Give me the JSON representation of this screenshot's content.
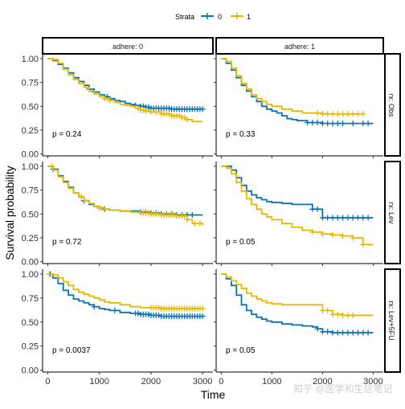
{
  "chart_data": {
    "type": "line",
    "subtype": "kaplan-meier survival curves (faceted)",
    "legend": {
      "title": "Strata",
      "position": "top",
      "entries": [
        {
          "label": "0",
          "color": "#0a72b5"
        },
        {
          "label": "1",
          "color": "#e7b800"
        }
      ]
    },
    "xlabel": "Time",
    "ylabel": "Survival probability",
    "xlim": [
      -100,
      3200
    ],
    "ylim": [
      -0.02,
      1.05
    ],
    "xticks": [
      "0",
      "1000",
      "2000",
      "3000"
    ],
    "yticks": [
      "0.00",
      "0.25",
      "0.50",
      "0.75",
      "1.00"
    ],
    "grid": false,
    "column_strips": [
      "adhere: 0",
      "adhere: 1"
    ],
    "row_strips": [
      "rx: Obs",
      "rx: Lev",
      "rx: Lev+5FU"
    ],
    "watermark": "知乎 @医学和生信笔记",
    "panels": [
      {
        "row": 0,
        "col": 0,
        "p_value": "p = 0.24",
        "series": [
          {
            "name": "0",
            "color": "#0a72b5",
            "x": [
              0,
              100,
              200,
              300,
              400,
              500,
              600,
              700,
              800,
              900,
              1000,
              1100,
              1200,
              1300,
              1400,
              1500,
              1600,
              1700,
              1800,
              1900,
              2000,
              2200,
              2400,
              2600,
              2800,
              3000
            ],
            "y": [
              1.0,
              0.98,
              0.94,
              0.9,
              0.85,
              0.8,
              0.76,
              0.72,
              0.68,
              0.65,
              0.62,
              0.6,
              0.58,
              0.56,
              0.55,
              0.53,
              0.52,
              0.51,
              0.5,
              0.49,
              0.48,
              0.48,
              0.47,
              0.47,
              0.47,
              0.47
            ],
            "censor_x": [
              800,
              900,
              1150,
              1700,
              1800,
              1850,
              1900,
              1950,
              2000,
              2050,
              2100,
              2150,
              2200,
              2250,
              2300,
              2350,
              2400,
              2450,
              2500,
              2550,
              2600,
              2650,
              2700,
              2750,
              2800,
              2850,
              2900,
              2950,
              3000
            ]
          },
          {
            "name": "1",
            "color": "#e7b800",
            "x": [
              0,
              100,
              200,
              300,
              400,
              500,
              600,
              700,
              800,
              900,
              1000,
              1100,
              1200,
              1300,
              1400,
              1500,
              1600,
              1700,
              1800,
              1900,
              2000,
              2200,
              2400,
              2600,
              2700,
              2800,
              3000
            ],
            "y": [
              1.0,
              0.99,
              0.95,
              0.89,
              0.83,
              0.78,
              0.74,
              0.7,
              0.66,
              0.63,
              0.6,
              0.58,
              0.56,
              0.54,
              0.52,
              0.51,
              0.5,
              0.48,
              0.46,
              0.45,
              0.44,
              0.42,
              0.4,
              0.38,
              0.36,
              0.34,
              0.34
            ],
            "censor_x": [
              1100,
              1200,
              1750,
              1800,
              1850,
              1900,
              2000,
              2100,
              2200,
              2250,
              2300,
              2350,
              2400,
              2450,
              2500,
              2550,
              2600,
              2650,
              2700
            ]
          }
        ]
      },
      {
        "row": 0,
        "col": 1,
        "p_value": "p = 0.33",
        "series": [
          {
            "name": "0",
            "color": "#0a72b5",
            "x": [
              0,
              100,
              200,
              300,
              400,
              500,
              600,
              700,
              800,
              900,
              1000,
              1100,
              1200,
              1300,
              1400,
              1500,
              1700,
              2000,
              2300,
              2600,
              3000
            ],
            "y": [
              1.0,
              0.95,
              0.88,
              0.8,
              0.72,
              0.66,
              0.6,
              0.55,
              0.5,
              0.47,
              0.45,
              0.43,
              0.4,
              0.37,
              0.36,
              0.35,
              0.33,
              0.32,
              0.32,
              0.32,
              0.32
            ],
            "censor_x": [
              1700,
              1800,
              1900,
              2000,
              2100,
              2200,
              2300,
              2400,
              2600,
              2800,
              2900
            ]
          },
          {
            "name": "1",
            "color": "#e7b800",
            "x": [
              0,
              100,
              200,
              300,
              400,
              500,
              600,
              700,
              800,
              900,
              1000,
              1200,
              1400,
              1600,
              1800,
              2000,
              2400,
              2800
            ],
            "y": [
              1.0,
              0.97,
              0.9,
              0.82,
              0.74,
              0.68,
              0.62,
              0.58,
              0.55,
              0.52,
              0.5,
              0.47,
              0.45,
              0.43,
              0.43,
              0.42,
              0.42,
              0.42
            ],
            "censor_x": [
              1900,
              2000,
              2100,
              2200,
              2300,
              2400,
              2500,
              2600,
              2700,
              2800
            ]
          }
        ]
      },
      {
        "row": 1,
        "col": 0,
        "p_value": "p = 0.72",
        "series": [
          {
            "name": "0",
            "color": "#0a72b5",
            "x": [
              0,
              100,
              200,
              300,
              400,
              500,
              600,
              700,
              800,
              900,
              1000,
              1100,
              1200,
              1300,
              1400,
              1500,
              1600,
              1800,
              2000,
              2200,
              2500,
              2800,
              3000
            ],
            "y": [
              1.0,
              0.97,
              0.9,
              0.84,
              0.78,
              0.72,
              0.68,
              0.64,
              0.6,
              0.58,
              0.56,
              0.55,
              0.54,
              0.54,
              0.53,
              0.53,
              0.53,
              0.52,
              0.51,
              0.5,
              0.49,
              0.49,
              0.49
            ],
            "censor_x": [
              100,
              700,
              1100,
              1800,
              1900,
              2000,
              2100,
              2200,
              2300,
              2400,
              2500,
              2600,
              2700,
              2800
            ]
          },
          {
            "name": "1",
            "color": "#e7b800",
            "x": [
              0,
              100,
              200,
              300,
              400,
              500,
              600,
              700,
              800,
              900,
              1000,
              1100,
              1200,
              1300,
              1400,
              1500,
              1600,
              1800,
              2000,
              2200,
              2500,
              2700,
              2800,
              3000
            ],
            "y": [
              1.0,
              0.96,
              0.89,
              0.83,
              0.77,
              0.72,
              0.68,
              0.64,
              0.61,
              0.58,
              0.56,
              0.55,
              0.54,
              0.54,
              0.53,
              0.53,
              0.52,
              0.51,
              0.5,
              0.49,
              0.48,
              0.44,
              0.4,
              0.38
            ],
            "censor_x": [
              80,
              650,
              1000,
              1050,
              1800,
              1850,
              1900,
              1950,
              2000,
              2050,
              2100,
              2150,
              2200,
              2250,
              2300,
              2350,
              2400,
              2450,
              2500,
              2550,
              2600,
              2650,
              2700,
              2850,
              2950
            ]
          }
        ]
      },
      {
        "row": 1,
        "col": 1,
        "p_value": "p = 0.05",
        "series": [
          {
            "name": "0",
            "color": "#0a72b5",
            "x": [
              0,
              100,
              200,
              300,
              400,
              500,
              600,
              700,
              800,
              900,
              1000,
              1200,
              1400,
              1600,
              1800,
              2000,
              2200,
              2400,
              2600,
              3000
            ],
            "y": [
              1.0,
              1.0,
              0.96,
              0.88,
              0.8,
              0.74,
              0.7,
              0.67,
              0.65,
              0.63,
              0.62,
              0.61,
              0.6,
              0.6,
              0.55,
              0.46,
              0.46,
              0.46,
              0.46,
              0.46
            ],
            "censor_x": [
              1800,
              1900,
              2000,
              2100,
              2200,
              2300,
              2400,
              2500,
              2600,
              2700,
              2800,
              2900
            ]
          },
          {
            "name": "1",
            "color": "#e7b800",
            "x": [
              0,
              100,
              200,
              300,
              400,
              500,
              600,
              700,
              800,
              900,
              1000,
              1200,
              1400,
              1600,
              1800,
              2000,
              2200,
              2400,
              2600,
              2800,
              3000
            ],
            "y": [
              1.0,
              0.98,
              0.92,
              0.83,
              0.74,
              0.66,
              0.6,
              0.55,
              0.5,
              0.47,
              0.44,
              0.4,
              0.36,
              0.33,
              0.31,
              0.29,
              0.28,
              0.27,
              0.25,
              0.18,
              0.18
            ],
            "censor_x": [
              1800,
              2000,
              2200,
              2400,
              2600,
              2800
            ]
          }
        ]
      },
      {
        "row": 2,
        "col": 0,
        "p_value": "p = 0.0037",
        "series": [
          {
            "name": "0",
            "color": "#0a72b5",
            "x": [
              0,
              100,
              200,
              300,
              400,
              500,
              600,
              700,
              800,
              900,
              1000,
              1100,
              1200,
              1400,
              1600,
              1800,
              2000,
              2200,
              2400,
              2600,
              2800,
              3000
            ],
            "y": [
              1.0,
              0.96,
              0.9,
              0.83,
              0.78,
              0.74,
              0.72,
              0.7,
              0.68,
              0.66,
              0.64,
              0.63,
              0.62,
              0.6,
              0.59,
              0.58,
              0.57,
              0.56,
              0.56,
              0.56,
              0.56,
              0.56
            ],
            "censor_x": [
              50,
              900,
              1300,
              1700,
              1750,
              1800,
              1850,
              1900,
              1950,
              2000,
              2050,
              2100,
              2150,
              2200,
              2250,
              2300,
              2350,
              2400,
              2450,
              2500,
              2550,
              2600,
              2650,
              2700,
              2750,
              2800,
              2850,
              2900,
              2950,
              3000
            ]
          },
          {
            "name": "1",
            "color": "#e7b800",
            "x": [
              0,
              100,
              200,
              300,
              400,
              500,
              600,
              700,
              800,
              900,
              1000,
              1100,
              1200,
              1400,
              1600,
              1800,
              2000,
              2200,
              2400,
              2600,
              2800,
              3000
            ],
            "y": [
              1.0,
              0.99,
              0.96,
              0.92,
              0.88,
              0.84,
              0.81,
              0.79,
              0.77,
              0.75,
              0.73,
              0.71,
              0.7,
              0.68,
              0.66,
              0.65,
              0.65,
              0.64,
              0.64,
              0.64,
              0.64,
              0.64
            ],
            "censor_x": [
              30,
              2000,
              2050,
              2100,
              2150,
              2200,
              2250,
              2300,
              2350,
              2400,
              2450,
              2500,
              2550,
              2600,
              2650,
              2700,
              2750,
              2800,
              2850,
              2900,
              2950,
              3000
            ]
          }
        ]
      },
      {
        "row": 2,
        "col": 1,
        "p_value": "p = 0.05",
        "series": [
          {
            "name": "0",
            "color": "#0a72b5",
            "x": [
              0,
              100,
              200,
              300,
              400,
              500,
              600,
              700,
              800,
              900,
              1000,
              1200,
              1400,
              1600,
              1800,
              1900,
              2000,
              2200,
              2400,
              2600,
              3000
            ],
            "y": [
              1.0,
              0.95,
              0.88,
              0.78,
              0.68,
              0.62,
              0.58,
              0.55,
              0.53,
              0.51,
              0.5,
              0.48,
              0.47,
              0.46,
              0.45,
              0.43,
              0.4,
              0.39,
              0.39,
              0.39,
              0.39
            ],
            "censor_x": [
              1900,
              2000,
              2100,
              2200,
              2300,
              2400,
              2500,
              2600,
              2700,
              2800,
              2900
            ]
          },
          {
            "name": "1",
            "color": "#e7b800",
            "x": [
              0,
              100,
              200,
              300,
              400,
              500,
              600,
              700,
              800,
              900,
              1000,
              1200,
              1400,
              1600,
              1800,
              2000,
              2200,
              2400,
              2600,
              2800,
              3000
            ],
            "y": [
              1.0,
              0.97,
              0.93,
              0.89,
              0.85,
              0.8,
              0.77,
              0.74,
              0.72,
              0.7,
              0.69,
              0.68,
              0.68,
              0.68,
              0.68,
              0.62,
              0.58,
              0.57,
              0.57,
              0.57,
              0.57
            ],
            "censor_x": [
              2000,
              2100,
              2200,
              2300,
              2400,
              2500,
              2600
            ]
          }
        ]
      }
    ]
  }
}
